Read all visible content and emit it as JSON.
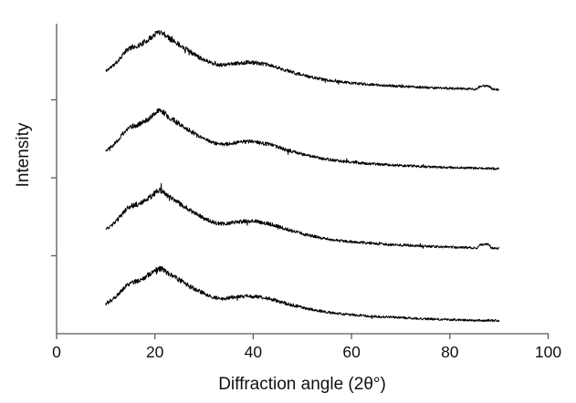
{
  "figure": {
    "background": "#ffffff"
  },
  "chart_data": {
    "type": "line",
    "title": "",
    "xlabel": "Diffraction angle (2θ°)",
    "ylabel": "Intensity",
    "x_range": [
      0,
      100
    ],
    "x_ticks": [
      0,
      20,
      40,
      60,
      80,
      100
    ],
    "y_range": [
      0,
      100
    ],
    "y_ticks_unlabeled": [
      25,
      50,
      75
    ],
    "grid": false,
    "legend": "none",
    "axis_color": "#58595b",
    "text_color": "#111111",
    "line_color": "#000000",
    "series": [
      {
        "id": "curve-1-top",
        "noise_seed": 11,
        "noise_base": 0.35,
        "noise_gain": 0.032,
        "points": [
          [
            10,
            84.2
          ],
          [
            12,
            86.7
          ],
          [
            14.5,
            91.2
          ],
          [
            17,
            92.7
          ],
          [
            19,
            94.7
          ],
          [
            21,
            96.8
          ],
          [
            23,
            94.7
          ],
          [
            26,
            91.7
          ],
          [
            29,
            88.7
          ],
          [
            33,
            86.2
          ],
          [
            36,
            86.6
          ],
          [
            39.5,
            87.0
          ],
          [
            43,
            86.2
          ],
          [
            46,
            84.8
          ],
          [
            49,
            83.4
          ],
          [
            52,
            82.2
          ],
          [
            56,
            81.1
          ],
          [
            60,
            80.4
          ],
          [
            64,
            79.9
          ],
          [
            68,
            79.5
          ],
          [
            72,
            79.2
          ],
          [
            76,
            78.9
          ],
          [
            80,
            78.7
          ],
          [
            84,
            78.5
          ],
          [
            85.5,
            78.5
          ],
          [
            86.2,
            79.4
          ],
          [
            88,
            79.3
          ],
          [
            88.6,
            78.5
          ],
          [
            90,
            78.3
          ]
        ]
      },
      {
        "id": "curve-2",
        "noise_seed": 22,
        "noise_base": 0.35,
        "noise_gain": 0.032,
        "points": [
          [
            10,
            58.8
          ],
          [
            12,
            61.3
          ],
          [
            14.5,
            65.8
          ],
          [
            17,
            67.3
          ],
          [
            19,
            69.3
          ],
          [
            21,
            71.4
          ],
          [
            23,
            69.3
          ],
          [
            26,
            66.3
          ],
          [
            29,
            63.3
          ],
          [
            33,
            60.8
          ],
          [
            36,
            61.2
          ],
          [
            39.5,
            61.6
          ],
          [
            43,
            60.8
          ],
          [
            46,
            59.4
          ],
          [
            49,
            58.0
          ],
          [
            52,
            56.8
          ],
          [
            56,
            55.7
          ],
          [
            60,
            55.0
          ],
          [
            64,
            54.5
          ],
          [
            68,
            54.1
          ],
          [
            72,
            53.8
          ],
          [
            76,
            53.5
          ],
          [
            80,
            53.3
          ],
          [
            85,
            53.1
          ],
          [
            90,
            52.9
          ]
        ]
      },
      {
        "id": "curve-3",
        "noise_seed": 33,
        "noise_base": 0.35,
        "noise_gain": 0.032,
        "points": [
          [
            10,
            33.3
          ],
          [
            12,
            35.8
          ],
          [
            14.5,
            40.3
          ],
          [
            17,
            41.8
          ],
          [
            19,
            43.8
          ],
          [
            21,
            45.9
          ],
          [
            23,
            43.8
          ],
          [
            26,
            40.8
          ],
          [
            29,
            37.8
          ],
          [
            33,
            35.3
          ],
          [
            36,
            35.7
          ],
          [
            39.5,
            36.1
          ],
          [
            43,
            35.3
          ],
          [
            46,
            33.9
          ],
          [
            49,
            32.5
          ],
          [
            52,
            31.3
          ],
          [
            56,
            30.2
          ],
          [
            60,
            29.5
          ],
          [
            64,
            29.0
          ],
          [
            68,
            28.6
          ],
          [
            72,
            28.3
          ],
          [
            76,
            28.0
          ],
          [
            80,
            27.8
          ],
          [
            84,
            27.6
          ],
          [
            85.6,
            27.6
          ],
          [
            86.2,
            28.5
          ],
          [
            88,
            28.4
          ],
          [
            88.5,
            27.5
          ],
          [
            90,
            27.4
          ]
        ]
      },
      {
        "id": "curve-4-bottom",
        "noise_seed": 44,
        "noise_base": 0.35,
        "noise_gain": 0.032,
        "points": [
          [
            10,
            9.5
          ],
          [
            12,
            11.8
          ],
          [
            14.5,
            15.8
          ],
          [
            17,
            17.2
          ],
          [
            19,
            19.0
          ],
          [
            21,
            20.8
          ],
          [
            23,
            19.0
          ],
          [
            26,
            16.3
          ],
          [
            29,
            13.6
          ],
          [
            33,
            11.3
          ],
          [
            36,
            11.7
          ],
          [
            39.5,
            12.0
          ],
          [
            43,
            11.3
          ],
          [
            46,
            10.0
          ],
          [
            49,
            8.8
          ],
          [
            52,
            7.7
          ],
          [
            56,
            6.7
          ],
          [
            60,
            6.1
          ],
          [
            64,
            5.6
          ],
          [
            68,
            5.3
          ],
          [
            72,
            5.0
          ],
          [
            76,
            4.7
          ],
          [
            80,
            4.5
          ],
          [
            85,
            4.3
          ],
          [
            90,
            4.2
          ]
        ]
      }
    ]
  }
}
